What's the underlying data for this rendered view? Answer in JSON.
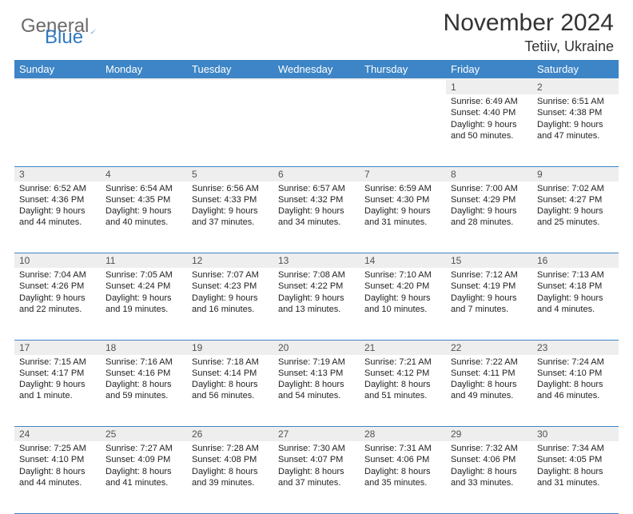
{
  "brand": {
    "word1": "General",
    "word2": "Blue"
  },
  "title": {
    "month": "November 2024",
    "location": "Tetiiv, Ukraine"
  },
  "colors": {
    "header_bg": "#3d85c6",
    "header_fg": "#ffffff",
    "daynum_bg": "#eeeeee",
    "daynum_fg": "#525252",
    "rule": "#3d85c6",
    "logo_gray": "#6b6b6b",
    "logo_blue": "#2f7ac0"
  },
  "day_headers": [
    "Sunday",
    "Monday",
    "Tuesday",
    "Wednesday",
    "Thursday",
    "Friday",
    "Saturday"
  ],
  "weeks": [
    [
      null,
      null,
      null,
      null,
      null,
      {
        "n": "1",
        "sunrise": "6:49 AM",
        "sunset": "4:40 PM",
        "day": "9 hours and 50 minutes."
      },
      {
        "n": "2",
        "sunrise": "6:51 AM",
        "sunset": "4:38 PM",
        "day": "9 hours and 47 minutes."
      }
    ],
    [
      {
        "n": "3",
        "sunrise": "6:52 AM",
        "sunset": "4:36 PM",
        "day": "9 hours and 44 minutes."
      },
      {
        "n": "4",
        "sunrise": "6:54 AM",
        "sunset": "4:35 PM",
        "day": "9 hours and 40 minutes."
      },
      {
        "n": "5",
        "sunrise": "6:56 AM",
        "sunset": "4:33 PM",
        "day": "9 hours and 37 minutes."
      },
      {
        "n": "6",
        "sunrise": "6:57 AM",
        "sunset": "4:32 PM",
        "day": "9 hours and 34 minutes."
      },
      {
        "n": "7",
        "sunrise": "6:59 AM",
        "sunset": "4:30 PM",
        "day": "9 hours and 31 minutes."
      },
      {
        "n": "8",
        "sunrise": "7:00 AM",
        "sunset": "4:29 PM",
        "day": "9 hours and 28 minutes."
      },
      {
        "n": "9",
        "sunrise": "7:02 AM",
        "sunset": "4:27 PM",
        "day": "9 hours and 25 minutes."
      }
    ],
    [
      {
        "n": "10",
        "sunrise": "7:04 AM",
        "sunset": "4:26 PM",
        "day": "9 hours and 22 minutes."
      },
      {
        "n": "11",
        "sunrise": "7:05 AM",
        "sunset": "4:24 PM",
        "day": "9 hours and 19 minutes."
      },
      {
        "n": "12",
        "sunrise": "7:07 AM",
        "sunset": "4:23 PM",
        "day": "9 hours and 16 minutes."
      },
      {
        "n": "13",
        "sunrise": "7:08 AM",
        "sunset": "4:22 PM",
        "day": "9 hours and 13 minutes."
      },
      {
        "n": "14",
        "sunrise": "7:10 AM",
        "sunset": "4:20 PM",
        "day": "9 hours and 10 minutes."
      },
      {
        "n": "15",
        "sunrise": "7:12 AM",
        "sunset": "4:19 PM",
        "day": "9 hours and 7 minutes."
      },
      {
        "n": "16",
        "sunrise": "7:13 AM",
        "sunset": "4:18 PM",
        "day": "9 hours and 4 minutes."
      }
    ],
    [
      {
        "n": "17",
        "sunrise": "7:15 AM",
        "sunset": "4:17 PM",
        "day": "9 hours and 1 minute."
      },
      {
        "n": "18",
        "sunrise": "7:16 AM",
        "sunset": "4:16 PM",
        "day": "8 hours and 59 minutes."
      },
      {
        "n": "19",
        "sunrise": "7:18 AM",
        "sunset": "4:14 PM",
        "day": "8 hours and 56 minutes."
      },
      {
        "n": "20",
        "sunrise": "7:19 AM",
        "sunset": "4:13 PM",
        "day": "8 hours and 54 minutes."
      },
      {
        "n": "21",
        "sunrise": "7:21 AM",
        "sunset": "4:12 PM",
        "day": "8 hours and 51 minutes."
      },
      {
        "n": "22",
        "sunrise": "7:22 AM",
        "sunset": "4:11 PM",
        "day": "8 hours and 49 minutes."
      },
      {
        "n": "23",
        "sunrise": "7:24 AM",
        "sunset": "4:10 PM",
        "day": "8 hours and 46 minutes."
      }
    ],
    [
      {
        "n": "24",
        "sunrise": "7:25 AM",
        "sunset": "4:10 PM",
        "day": "8 hours and 44 minutes."
      },
      {
        "n": "25",
        "sunrise": "7:27 AM",
        "sunset": "4:09 PM",
        "day": "8 hours and 41 minutes."
      },
      {
        "n": "26",
        "sunrise": "7:28 AM",
        "sunset": "4:08 PM",
        "day": "8 hours and 39 minutes."
      },
      {
        "n": "27",
        "sunrise": "7:30 AM",
        "sunset": "4:07 PM",
        "day": "8 hours and 37 minutes."
      },
      {
        "n": "28",
        "sunrise": "7:31 AM",
        "sunset": "4:06 PM",
        "day": "8 hours and 35 minutes."
      },
      {
        "n": "29",
        "sunrise": "7:32 AM",
        "sunset": "4:06 PM",
        "day": "8 hours and 33 minutes."
      },
      {
        "n": "30",
        "sunrise": "7:34 AM",
        "sunset": "4:05 PM",
        "day": "8 hours and 31 minutes."
      }
    ]
  ],
  "labels": {
    "sunrise": "Sunrise:",
    "sunset": "Sunset:",
    "daylight": "Daylight:"
  }
}
